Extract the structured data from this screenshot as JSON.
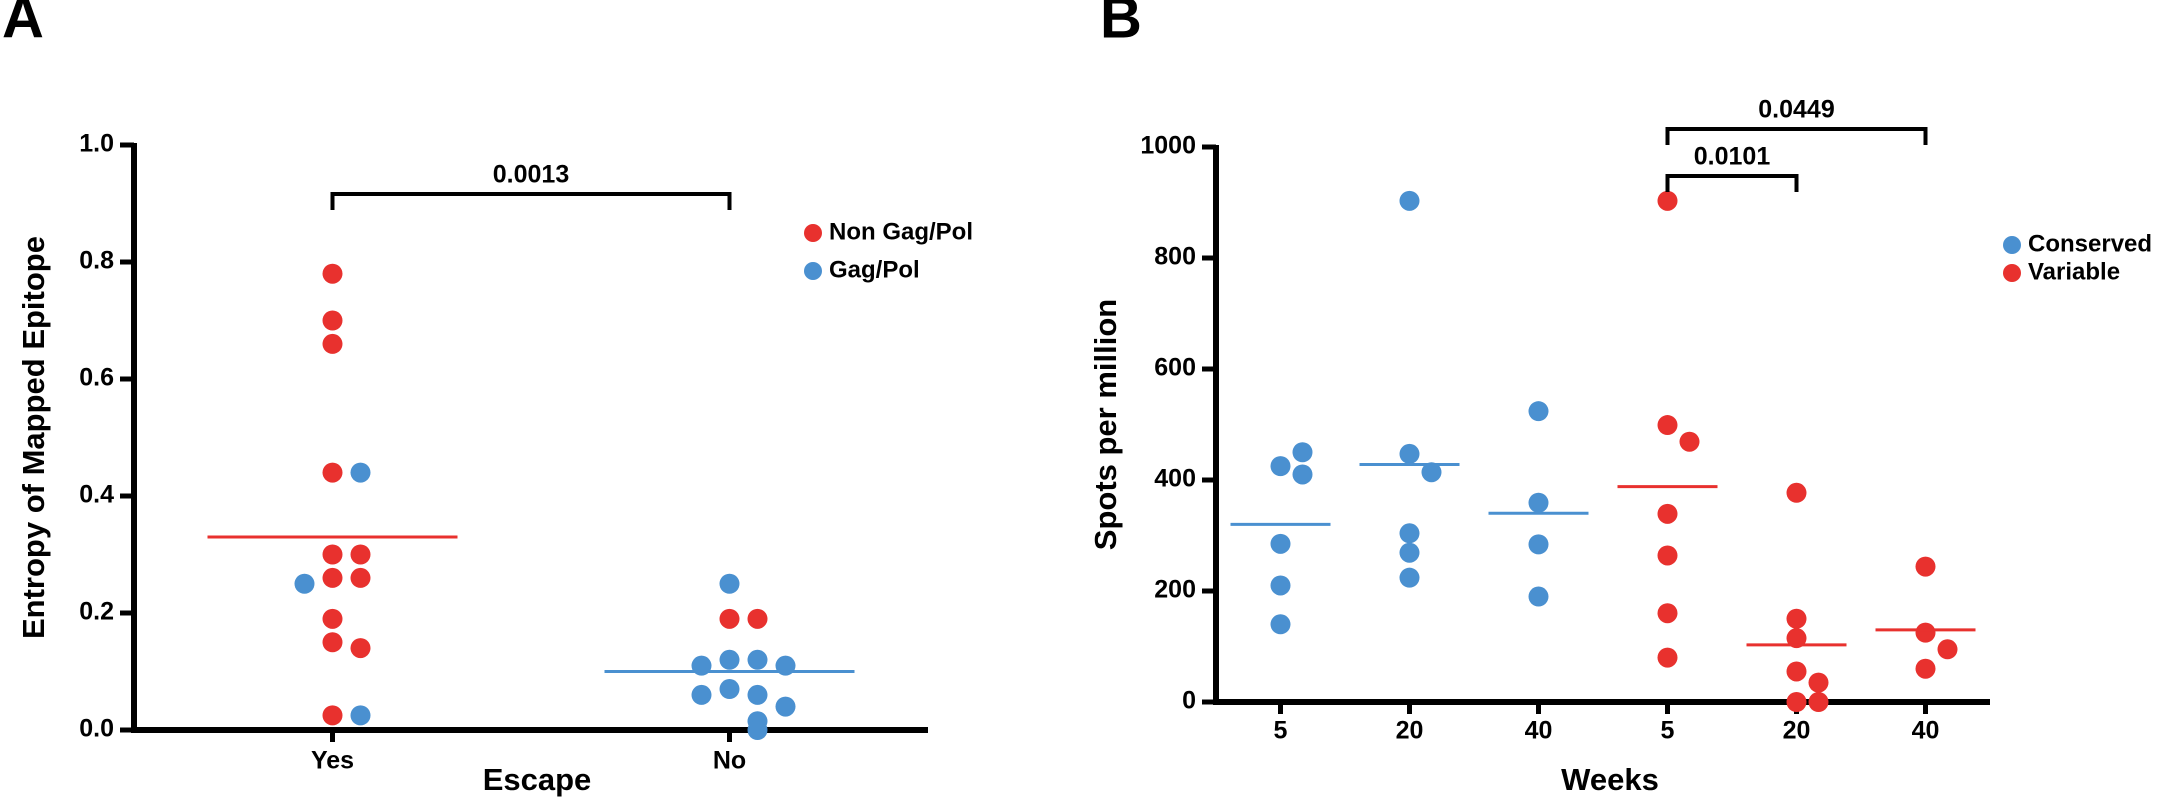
{
  "chart_data": [
    {
      "type": "strip",
      "panel": "A",
      "y_label": "Entropy of Mapped Epitope",
      "x_label": "Escape",
      "categories": [
        "Yes",
        "No"
      ],
      "ylim": [
        0,
        1
      ],
      "yticks": [
        {
          "value": 0,
          "label": "0.0"
        },
        0.2,
        0.4,
        0.6,
        0.8,
        {
          "value": 1,
          "label": "1.0"
        }
      ],
      "series": [
        {
          "name": "Non Gag/Pol",
          "color": "#e8312e",
          "groups": [
            [
              0.78,
              0.7,
              0.66,
              0.44,
              0.3,
              0.3,
              0.26,
              0.26,
              0.19,
              0.15,
              0.14,
              0.025
            ],
            [
              0.19,
              0.19
            ]
          ],
          "means": [
            0.33,
            null
          ]
        },
        {
          "name": "Gag/Pol",
          "color": "#4a90d0",
          "groups": [
            [
              0.44,
              0.25,
              0.025
            ],
            [
              0.25,
              0.12,
              0.12,
              0.11,
              0.11,
              0.07,
              0.06,
              0.06,
              0.04,
              0.015,
              0
            ]
          ],
          "means": [
            null,
            0.1
          ]
        }
      ],
      "comparisons": [
        {
          "from": 0,
          "to": 1,
          "label": "0.0013"
        }
      ]
    },
    {
      "type": "strip",
      "panel": "B",
      "y_label": "Spots per million",
      "x_label": "Weeks",
      "categories": [
        "5",
        "20",
        "40",
        "5",
        "20",
        "40"
      ],
      "ylim": [
        0,
        1000
      ],
      "yticks": [
        0,
        200,
        400,
        600,
        800,
        1000
      ],
      "series": [
        {
          "name": "Conserved",
          "color": "#4a90d0",
          "groups": [
            [
              425,
              410,
              450,
              285,
              210,
              140
            ],
            [
              903,
              447,
              414,
              304,
              269,
              224
            ],
            [
              524,
              359,
              284,
              190
            ],
            null,
            null,
            null
          ],
          "means": [
            320,
            428,
            340,
            null,
            null,
            null
          ]
        },
        {
          "name": "Variable",
          "color": "#e8312e",
          "groups": [
            null,
            null,
            null,
            [
              903,
              499,
              469,
              339,
              264,
              160,
              80
            ],
            [
              377,
              150,
              115,
              55,
              35,
              0,
              0
            ],
            [
              244,
              125,
              95,
              60
            ]
          ],
          "means": [
            null,
            null,
            null,
            388,
            103,
            130
          ]
        }
      ],
      "comparisons": [
        {
          "from": 3,
          "to": 4,
          "label": "0.0101"
        },
        {
          "from": 3,
          "to": 5,
          "label": "0.0449"
        }
      ]
    }
  ]
}
